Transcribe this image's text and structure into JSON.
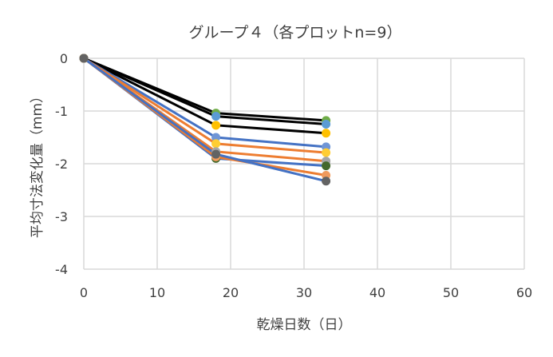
{
  "chart_data": {
    "type": "line",
    "title": "グループ４（各プロットn=9）",
    "xlabel": "乾燥日数（日）",
    "ylabel": "平均寸法変化量（mm）",
    "xlim": [
      0,
      60
    ],
    "ylim": [
      -4,
      0
    ],
    "xticks": [
      "0",
      "10",
      "20",
      "30",
      "40",
      "50",
      "60"
    ],
    "yticks": [
      "0",
      "-1",
      "-2",
      "-3",
      "-4"
    ],
    "grid": true,
    "x": [
      0,
      18,
      33
    ],
    "series": [
      {
        "line_color": "#000000",
        "marker_color": "#70ad47",
        "values": [
          0,
          -1.04,
          -1.18
        ]
      },
      {
        "line_color": "#000000",
        "marker_color": "#5b9bd5",
        "values": [
          0,
          -1.1,
          -1.25
        ]
      },
      {
        "line_color": "#000000",
        "marker_color": "#ffc000",
        "values": [
          0,
          -1.27,
          -1.42
        ]
      },
      {
        "line_color": "#4472c4",
        "marker_color": "#6f95d6",
        "values": [
          0,
          -1.5,
          -1.68
        ]
      },
      {
        "line_color": "#ed7d31",
        "marker_color": "#ffcd33",
        "values": [
          0,
          -1.62,
          -1.79
        ]
      },
      {
        "line_color": "#ed7d31",
        "marker_color": "#a5a5a5",
        "values": [
          0,
          -1.77,
          -1.95
        ]
      },
      {
        "line_color": "#4472c4",
        "marker_color": "#43682b",
        "values": [
          0,
          -1.9,
          -2.04
        ]
      },
      {
        "line_color": "#ed7d31",
        "marker_color": "#f09a5d",
        "values": [
          0,
          -1.87,
          -2.22
        ]
      },
      {
        "line_color": "#4472c4",
        "marker_color": "#636363",
        "values": [
          0,
          -1.82,
          -2.33
        ]
      }
    ]
  }
}
